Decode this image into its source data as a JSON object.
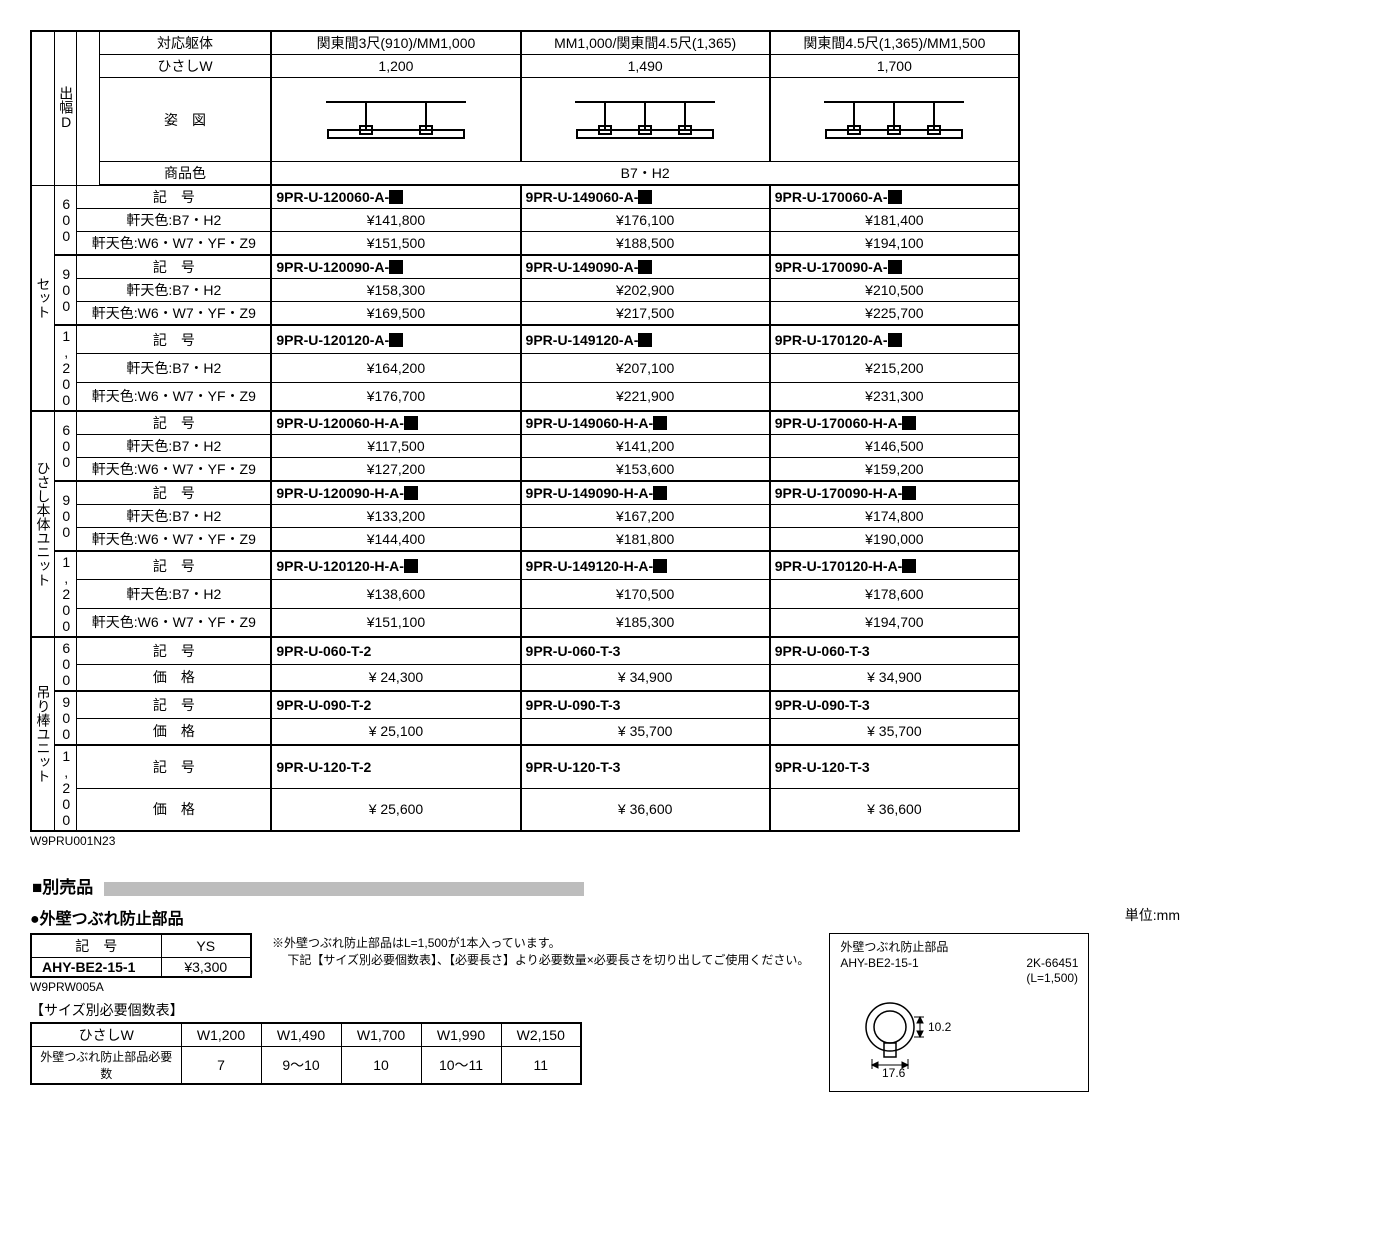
{
  "main": {
    "headers": {
      "body_match": "対応躯体",
      "hisashi_w": "ひさしW",
      "figure": "姿　図",
      "product_color": "商品色",
      "depth_D": "出幅D",
      "part_no": "記　号",
      "price": "価　格",
      "eave_color1": "軒天色:B7・H2",
      "eave_color2": "軒天色:W6・W7・YF・Z9",
      "product_color_value": "B7・H2"
    },
    "width_cols": [
      {
        "body": "関東間3尺(910)/MM1,000",
        "w": "1,200"
      },
      {
        "body": "MM1,000/関東間4.5尺(1,365)",
        "w": "1,490"
      },
      {
        "body": "関東間4.5尺(1,365)/MM1,500",
        "w": "1,700"
      }
    ],
    "groups": [
      {
        "label": "セット",
        "depths": [
          {
            "d": "600",
            "part": [
              "9PR-U-120060-A-",
              "9PR-U-149060-A-",
              "9PR-U-170060-A-"
            ],
            "p1": [
              "¥141,800",
              "¥176,100",
              "¥181,400"
            ],
            "p2": [
              "¥151,500",
              "¥188,500",
              "¥194,100"
            ]
          },
          {
            "d": "900",
            "part": [
              "9PR-U-120090-A-",
              "9PR-U-149090-A-",
              "9PR-U-170090-A-"
            ],
            "p1": [
              "¥158,300",
              "¥202,900",
              "¥210,500"
            ],
            "p2": [
              "¥169,500",
              "¥217,500",
              "¥225,700"
            ]
          },
          {
            "d": "1,200",
            "part": [
              "9PR-U-120120-A-",
              "9PR-U-149120-A-",
              "9PR-U-170120-A-"
            ],
            "p1": [
              "¥164,200",
              "¥207,100",
              "¥215,200"
            ],
            "p2": [
              "¥176,700",
              "¥221,900",
              "¥231,300"
            ]
          }
        ]
      },
      {
        "label": "ひさし本体ユニット",
        "depths": [
          {
            "d": "600",
            "part": [
              "9PR-U-120060-H-A-",
              "9PR-U-149060-H-A-",
              "9PR-U-170060-H-A-"
            ],
            "p1": [
              "¥117,500",
              "¥141,200",
              "¥146,500"
            ],
            "p2": [
              "¥127,200",
              "¥153,600",
              "¥159,200"
            ]
          },
          {
            "d": "900",
            "part": [
              "9PR-U-120090-H-A-",
              "9PR-U-149090-H-A-",
              "9PR-U-170090-H-A-"
            ],
            "p1": [
              "¥133,200",
              "¥167,200",
              "¥174,800"
            ],
            "p2": [
              "¥144,400",
              "¥181,800",
              "¥190,000"
            ]
          },
          {
            "d": "1,200",
            "part": [
              "9PR-U-120120-H-A-",
              "9PR-U-149120-H-A-",
              "9PR-U-170120-H-A-"
            ],
            "p1": [
              "¥138,600",
              "¥170,500",
              "¥178,600"
            ],
            "p2": [
              "¥151,100",
              "¥185,300",
              "¥194,700"
            ]
          }
        ]
      },
      {
        "label": "吊り棒ユニット",
        "depths": [
          {
            "d": "600",
            "part": [
              "9PR-U-060-T-2",
              "9PR-U-060-T-3",
              "9PR-U-060-T-3"
            ],
            "price": [
              "¥  24,300",
              "¥  34,900",
              "¥  34,900"
            ]
          },
          {
            "d": "900",
            "part": [
              "9PR-U-090-T-2",
              "9PR-U-090-T-3",
              "9PR-U-090-T-3"
            ],
            "price": [
              "¥  25,100",
              "¥  35,700",
              "¥  35,700"
            ]
          },
          {
            "d": "1,200",
            "part": [
              "9PR-U-120-T-2",
              "9PR-U-120-T-3",
              "9PR-U-120-T-3"
            ],
            "price": [
              "¥  25,600",
              "¥  36,600",
              "¥  36,600"
            ]
          }
        ]
      }
    ],
    "footer_code": "W9PRU001N23"
  },
  "options": {
    "section_title": "■別売品",
    "unit": "単位:mm",
    "wall_part": {
      "title": "●外壁つぶれ防止部品",
      "header_partno": "記　号",
      "header_color": "YS",
      "partno": "AHY-BE2-15-1",
      "price": "¥3,300",
      "table_code": "W9PRW005A",
      "note1": "※外壁つぶれ防止部品はL=1,500が1本入っています。",
      "note2": "　  下記【サイズ別必要個数表】、【必要長さ】より必要数量×必要長さを切り出してご使用ください。"
    },
    "qty_table": {
      "title": "【サイズ別必要個数表】",
      "row_label": "ひさしW",
      "row_label2": "外壁つぶれ防止部品必要数",
      "cols": [
        "W1,200",
        "W1,490",
        "W1,700",
        "W1,990",
        "W2,150"
      ],
      "vals": [
        "7",
        "9～10",
        "10",
        "10～11",
        "11"
      ]
    },
    "diagram": {
      "title": "外壁つぶれ防止部品",
      "partno": "AHY-BE2-15-1",
      "drawing_no": "2K-66451",
      "length": "(L=1,500)",
      "dim1": "10.2",
      "dim2": "17.6"
    }
  },
  "style": {
    "border_color": "#000000",
    "bar_color": "#bdbdbd"
  }
}
